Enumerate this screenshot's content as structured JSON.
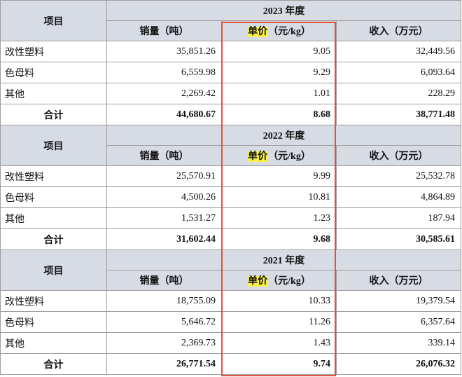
{
  "item_header": "项目",
  "total_label": "合计",
  "col_sales": "销量（吨）",
  "col_price_hl": "单价",
  "col_price_rest": "（元/kg）",
  "col_revenue": "收入（万元）",
  "sections": [
    {
      "year_label": "2023 年度",
      "rows": [
        {
          "name": "改性塑料",
          "sales": "35,851.26",
          "price": "9.05",
          "revenue": "32,449.56"
        },
        {
          "name": "色母料",
          "sales": "6,559.98",
          "price": "9.29",
          "revenue": "6,093.64"
        },
        {
          "name": "其他",
          "sales": "2,269.42",
          "price": "1.01",
          "revenue": "228.29"
        }
      ],
      "total": {
        "sales": "44,680.67",
        "price": "8.68",
        "revenue": "38,771.48"
      }
    },
    {
      "year_label": "2022 年度",
      "rows": [
        {
          "name": "改性塑料",
          "sales": "25,570.91",
          "price": "9.99",
          "revenue": "25,532.78"
        },
        {
          "name": "色母料",
          "sales": "4,500.26",
          "price": "10.81",
          "revenue": "4,864.89"
        },
        {
          "name": "其他",
          "sales": "1,531.27",
          "price": "1.23",
          "revenue": "187.94"
        }
      ],
      "total": {
        "sales": "31,602.44",
        "price": "9.68",
        "revenue": "30,585.61"
      }
    },
    {
      "year_label": "2021 年度",
      "rows": [
        {
          "name": "改性塑料",
          "sales": "18,755.09",
          "price": "10.33",
          "revenue": "19,379.54"
        },
        {
          "name": "色母料",
          "sales": "5,646.72",
          "price": "11.26",
          "revenue": "6,357.64"
        },
        {
          "name": "其他",
          "sales": "2,369.73",
          "price": "1.43",
          "revenue": "339.14"
        }
      ],
      "total": {
        "sales": "26,771.54",
        "price": "9.74",
        "revenue": "26,076.32"
      }
    }
  ],
  "colors": {
    "header_bg": "#d7dbe4",
    "highlight": "#f7f04a",
    "box_border": "#e0523c"
  }
}
